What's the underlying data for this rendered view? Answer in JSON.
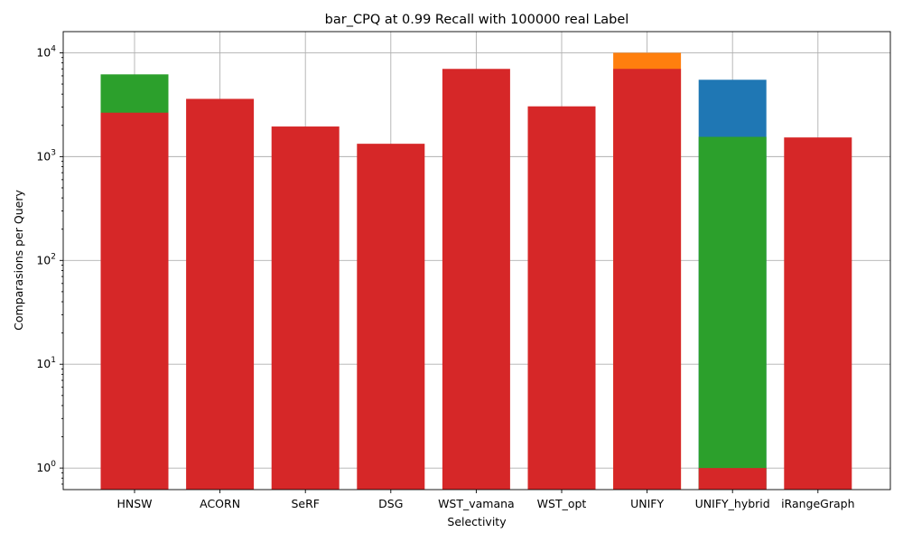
{
  "chart_data": {
    "type": "bar",
    "stacking": "overlaid",
    "title": "bar_CPQ at 0.99 Recall with 100000 real Label",
    "xlabel": "Selectivity",
    "ylabel": "Comparasions per Query",
    "yscale": "log",
    "ylim": [
      0.62,
      16000
    ],
    "yticks": [
      1,
      10,
      100,
      1000,
      10000
    ],
    "ytick_labels": [
      {
        "base": "10",
        "exp": "0"
      },
      {
        "base": "10",
        "exp": "1"
      },
      {
        "base": "10",
        "exp": "2"
      },
      {
        "base": "10",
        "exp": "3"
      },
      {
        "base": "10",
        "exp": "4"
      }
    ],
    "grid": true,
    "categories": [
      "HNSW",
      "ACORN",
      "SeRF",
      "DSG",
      "WST_vamana",
      "WST_opt",
      "UNIFY",
      "UNIFY_hybrid",
      "iRangeGraph"
    ],
    "series": [
      {
        "color": "#1f77b4",
        "values": [
          null,
          null,
          null,
          null,
          null,
          null,
          null,
          5500,
          null
        ]
      },
      {
        "color": "#ff7f0e",
        "values": [
          null,
          null,
          null,
          null,
          null,
          null,
          10000,
          null,
          null
        ]
      },
      {
        "color": "#2ca02c",
        "values": [
          6200,
          null,
          null,
          null,
          null,
          null,
          null,
          1550,
          null
        ]
      },
      {
        "color": "#d62728",
        "values": [
          2650,
          3600,
          1950,
          1330,
          7000,
          3050,
          7000,
          1,
          1530
        ]
      }
    ]
  }
}
